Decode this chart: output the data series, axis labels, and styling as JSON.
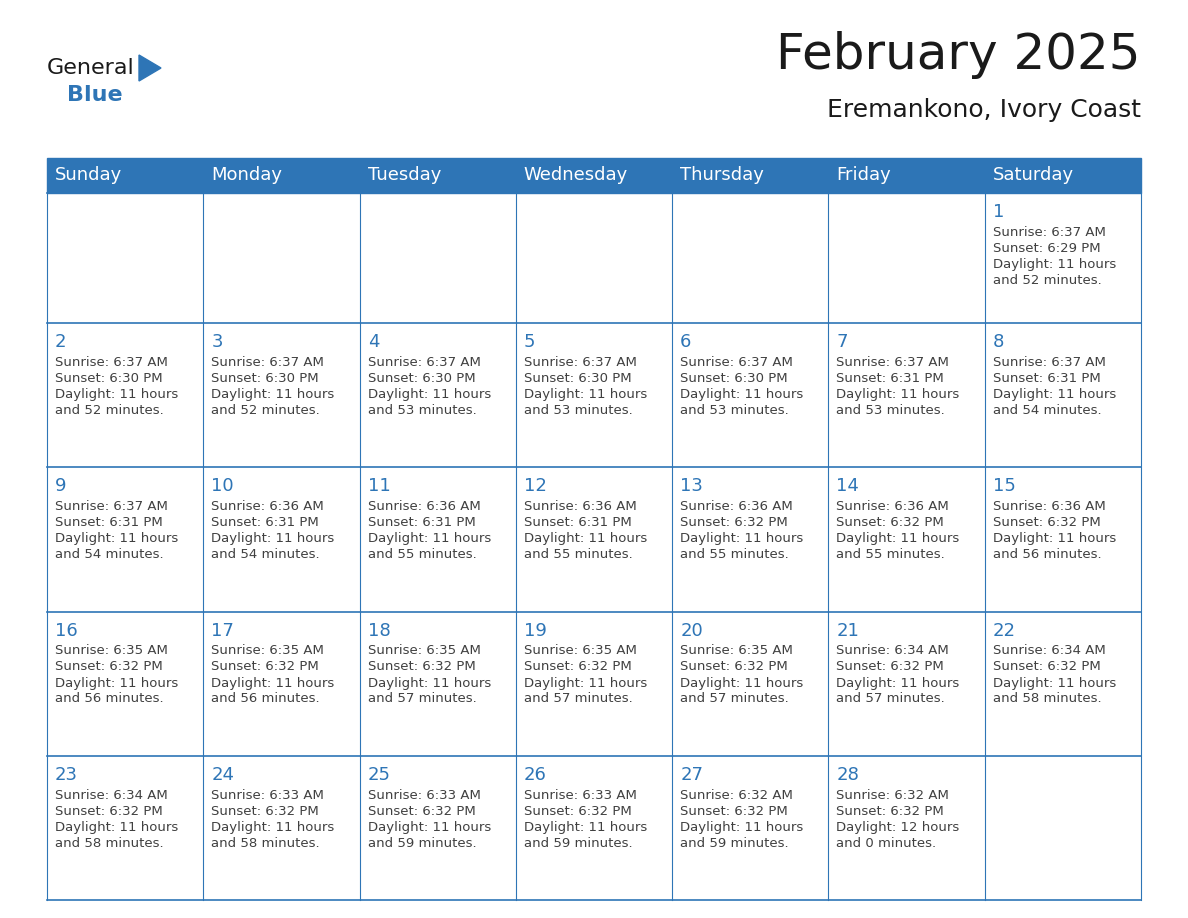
{
  "title": "February 2025",
  "subtitle": "Eremankono, Ivory Coast",
  "header_bg": "#2E75B6",
  "header_text_color": "#FFFFFF",
  "cell_border_color": "#2E75B6",
  "day_number_color": "#2E75B6",
  "info_text_color": "#404040",
  "background_color": "#FFFFFF",
  "days_of_week": [
    "Sunday",
    "Monday",
    "Tuesday",
    "Wednesday",
    "Thursday",
    "Friday",
    "Saturday"
  ],
  "weeks": [
    [
      {
        "day": null,
        "info": ""
      },
      {
        "day": null,
        "info": ""
      },
      {
        "day": null,
        "info": ""
      },
      {
        "day": null,
        "info": ""
      },
      {
        "day": null,
        "info": ""
      },
      {
        "day": null,
        "info": ""
      },
      {
        "day": 1,
        "info": "Sunrise: 6:37 AM\nSunset: 6:29 PM\nDaylight: 11 hours\nand 52 minutes."
      }
    ],
    [
      {
        "day": 2,
        "info": "Sunrise: 6:37 AM\nSunset: 6:30 PM\nDaylight: 11 hours\nand 52 minutes."
      },
      {
        "day": 3,
        "info": "Sunrise: 6:37 AM\nSunset: 6:30 PM\nDaylight: 11 hours\nand 52 minutes."
      },
      {
        "day": 4,
        "info": "Sunrise: 6:37 AM\nSunset: 6:30 PM\nDaylight: 11 hours\nand 53 minutes."
      },
      {
        "day": 5,
        "info": "Sunrise: 6:37 AM\nSunset: 6:30 PM\nDaylight: 11 hours\nand 53 minutes."
      },
      {
        "day": 6,
        "info": "Sunrise: 6:37 AM\nSunset: 6:30 PM\nDaylight: 11 hours\nand 53 minutes."
      },
      {
        "day": 7,
        "info": "Sunrise: 6:37 AM\nSunset: 6:31 PM\nDaylight: 11 hours\nand 53 minutes."
      },
      {
        "day": 8,
        "info": "Sunrise: 6:37 AM\nSunset: 6:31 PM\nDaylight: 11 hours\nand 54 minutes."
      }
    ],
    [
      {
        "day": 9,
        "info": "Sunrise: 6:37 AM\nSunset: 6:31 PM\nDaylight: 11 hours\nand 54 minutes."
      },
      {
        "day": 10,
        "info": "Sunrise: 6:36 AM\nSunset: 6:31 PM\nDaylight: 11 hours\nand 54 minutes."
      },
      {
        "day": 11,
        "info": "Sunrise: 6:36 AM\nSunset: 6:31 PM\nDaylight: 11 hours\nand 55 minutes."
      },
      {
        "day": 12,
        "info": "Sunrise: 6:36 AM\nSunset: 6:31 PM\nDaylight: 11 hours\nand 55 minutes."
      },
      {
        "day": 13,
        "info": "Sunrise: 6:36 AM\nSunset: 6:32 PM\nDaylight: 11 hours\nand 55 minutes."
      },
      {
        "day": 14,
        "info": "Sunrise: 6:36 AM\nSunset: 6:32 PM\nDaylight: 11 hours\nand 55 minutes."
      },
      {
        "day": 15,
        "info": "Sunrise: 6:36 AM\nSunset: 6:32 PM\nDaylight: 11 hours\nand 56 minutes."
      }
    ],
    [
      {
        "day": 16,
        "info": "Sunrise: 6:35 AM\nSunset: 6:32 PM\nDaylight: 11 hours\nand 56 minutes."
      },
      {
        "day": 17,
        "info": "Sunrise: 6:35 AM\nSunset: 6:32 PM\nDaylight: 11 hours\nand 56 minutes."
      },
      {
        "day": 18,
        "info": "Sunrise: 6:35 AM\nSunset: 6:32 PM\nDaylight: 11 hours\nand 57 minutes."
      },
      {
        "day": 19,
        "info": "Sunrise: 6:35 AM\nSunset: 6:32 PM\nDaylight: 11 hours\nand 57 minutes."
      },
      {
        "day": 20,
        "info": "Sunrise: 6:35 AM\nSunset: 6:32 PM\nDaylight: 11 hours\nand 57 minutes."
      },
      {
        "day": 21,
        "info": "Sunrise: 6:34 AM\nSunset: 6:32 PM\nDaylight: 11 hours\nand 57 minutes."
      },
      {
        "day": 22,
        "info": "Sunrise: 6:34 AM\nSunset: 6:32 PM\nDaylight: 11 hours\nand 58 minutes."
      }
    ],
    [
      {
        "day": 23,
        "info": "Sunrise: 6:34 AM\nSunset: 6:32 PM\nDaylight: 11 hours\nand 58 minutes."
      },
      {
        "day": 24,
        "info": "Sunrise: 6:33 AM\nSunset: 6:32 PM\nDaylight: 11 hours\nand 58 minutes."
      },
      {
        "day": 25,
        "info": "Sunrise: 6:33 AM\nSunset: 6:32 PM\nDaylight: 11 hours\nand 59 minutes."
      },
      {
        "day": 26,
        "info": "Sunrise: 6:33 AM\nSunset: 6:32 PM\nDaylight: 11 hours\nand 59 minutes."
      },
      {
        "day": 27,
        "info": "Sunrise: 6:32 AM\nSunset: 6:32 PM\nDaylight: 11 hours\nand 59 minutes."
      },
      {
        "day": 28,
        "info": "Sunrise: 6:32 AM\nSunset: 6:32 PM\nDaylight: 12 hours\nand 0 minutes."
      },
      {
        "day": null,
        "info": ""
      }
    ]
  ],
  "logo_general_color": "#1a1a1a",
  "logo_blue_color": "#2E75B6",
  "title_fontsize": 36,
  "subtitle_fontsize": 18,
  "header_fontsize": 13,
  "day_num_fontsize": 13,
  "info_fontsize": 9.5,
  "fig_width": 11.88,
  "fig_height": 9.18,
  "dpi": 100
}
